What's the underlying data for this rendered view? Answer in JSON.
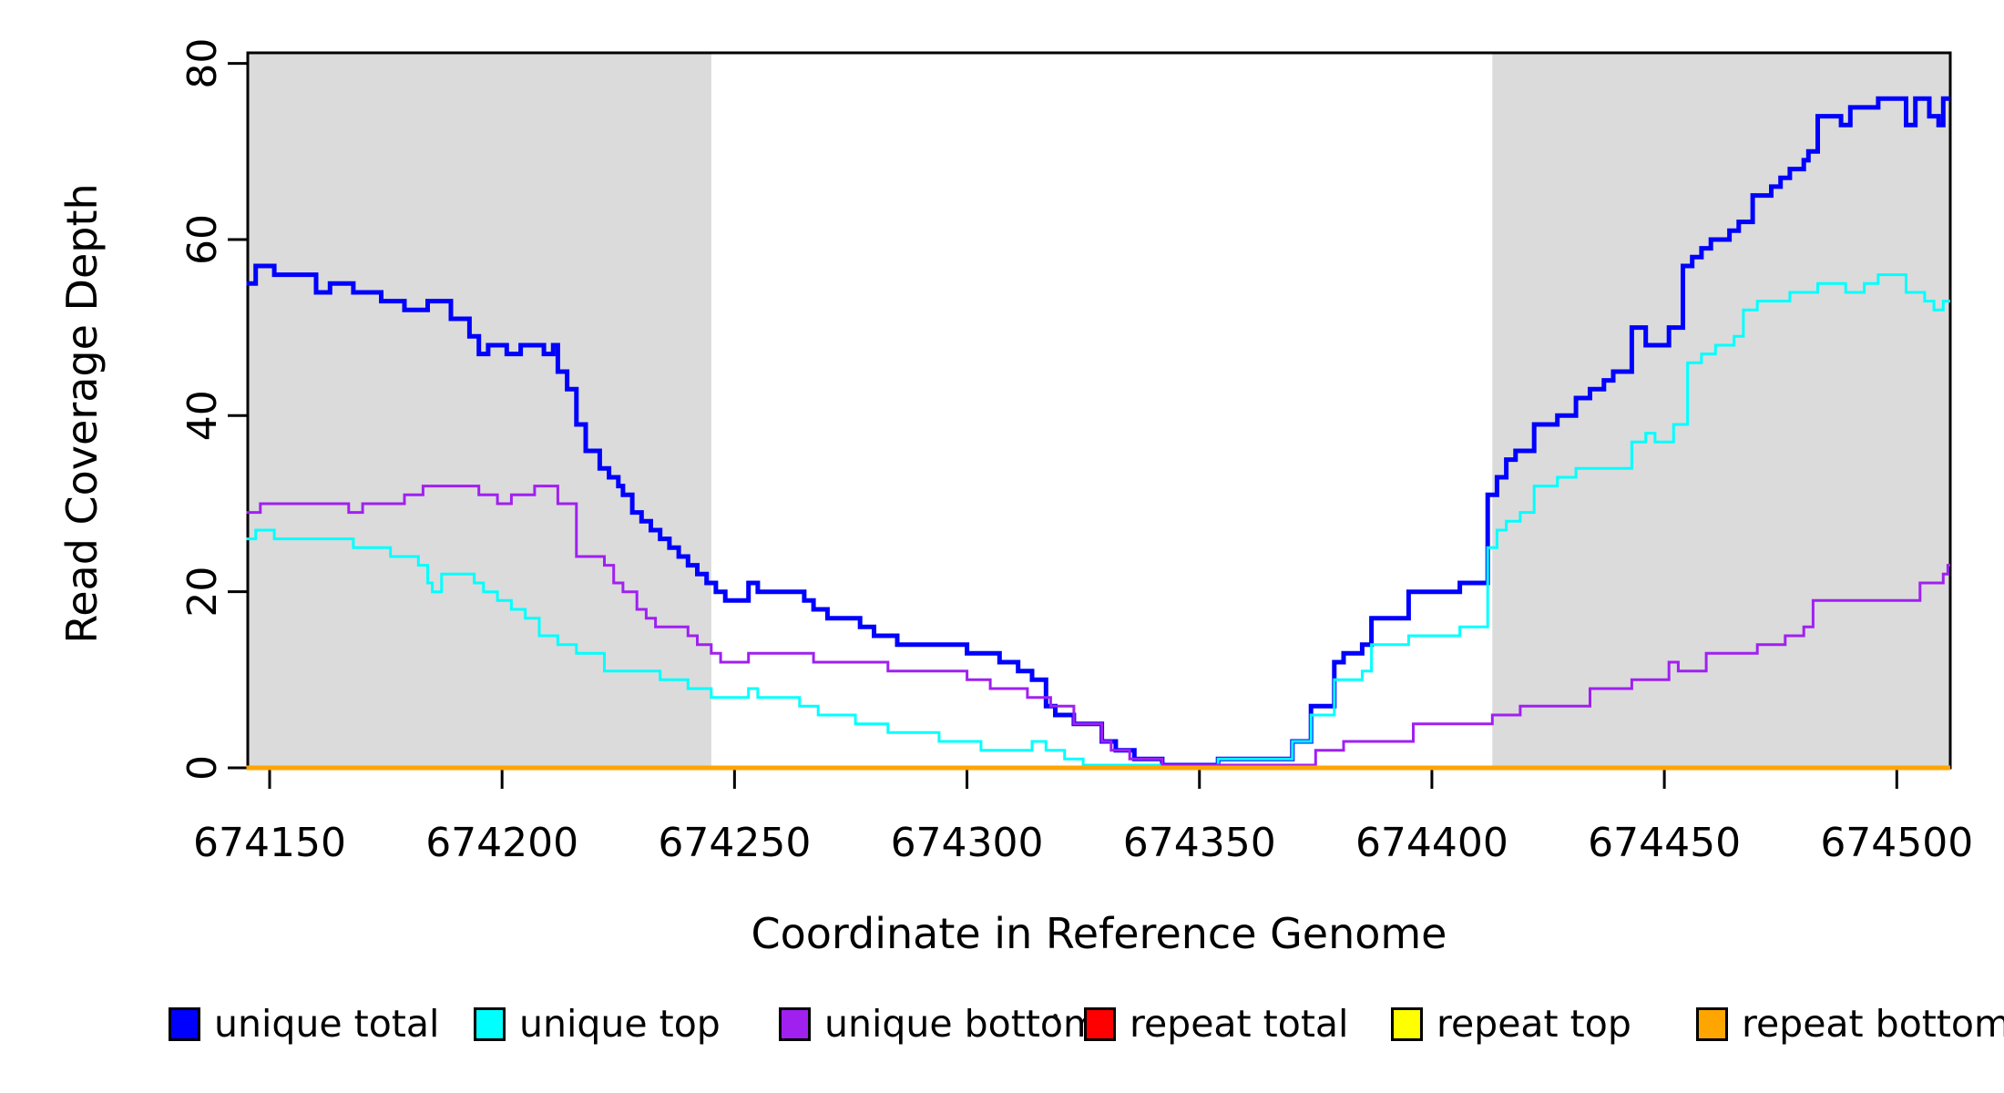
{
  "chart_data": {
    "type": "line",
    "subtype": "step-after",
    "title": "",
    "xlabel": "Coordinate in Reference Genome",
    "ylabel": "Read Coverage Depth",
    "x_range": [
      674145.3,
      674511.5
    ],
    "y_range": [
      0,
      81.2
    ],
    "x_ticks": [
      674150,
      674200,
      674250,
      674300,
      674350,
      674400,
      674450,
      674500
    ],
    "y_ticks": [
      0,
      20,
      40,
      60,
      80
    ],
    "grid": false,
    "legend_position": "bottom",
    "background": "#ffffff",
    "shaded_regions": [
      {
        "x0": 674145.3,
        "x1": 674245,
        "color": "#DBDBDB"
      },
      {
        "x0": 674413,
        "x1": 674511.5,
        "color": "#DBDBDB"
      }
    ],
    "series": [
      {
        "name": "unique total",
        "color": "#0000FF",
        "width": 5,
        "points": [
          [
            674145,
            55
          ],
          [
            674147,
            57
          ],
          [
            674151,
            56
          ],
          [
            674160,
            54
          ],
          [
            674163,
            55
          ],
          [
            674168,
            54
          ],
          [
            674174,
            53
          ],
          [
            674179,
            52
          ],
          [
            674184,
            53
          ],
          [
            674189,
            51
          ],
          [
            674193,
            49
          ],
          [
            674195,
            47
          ],
          [
            674197,
            48
          ],
          [
            674201,
            47
          ],
          [
            674204,
            48
          ],
          [
            674209,
            47
          ],
          [
            674211,
            48
          ],
          [
            674212,
            45
          ],
          [
            674214,
            43
          ],
          [
            674216,
            39
          ],
          [
            674218,
            36
          ],
          [
            674221,
            34
          ],
          [
            674223,
            33
          ],
          [
            674225,
            32
          ],
          [
            674226,
            31
          ],
          [
            674228,
            29
          ],
          [
            674230,
            28
          ],
          [
            674232,
            27
          ],
          [
            674234,
            26
          ],
          [
            674236,
            25
          ],
          [
            674238,
            24
          ],
          [
            674240,
            23
          ],
          [
            674242,
            22
          ],
          [
            674244,
            21
          ],
          [
            674246,
            20
          ],
          [
            674248,
            19
          ],
          [
            674253,
            21
          ],
          [
            674255,
            20
          ],
          [
            674265,
            19
          ],
          [
            674267,
            18
          ],
          [
            674270,
            17
          ],
          [
            674277,
            16
          ],
          [
            674280,
            15
          ],
          [
            674285,
            14
          ],
          [
            674300,
            13
          ],
          [
            674307,
            12
          ],
          [
            674311,
            11
          ],
          [
            674314,
            10
          ],
          [
            674317,
            7
          ],
          [
            674319,
            6
          ],
          [
            674323,
            5
          ],
          [
            674329,
            3
          ],
          [
            674332,
            2
          ],
          [
            674336,
            1
          ],
          [
            674342,
            0
          ],
          [
            674354,
            1
          ],
          [
            674370,
            3
          ],
          [
            674374,
            7
          ],
          [
            674379,
            12
          ],
          [
            674381,
            13
          ],
          [
            674385,
            14
          ],
          [
            674387,
            17
          ],
          [
            674395,
            20
          ],
          [
            674406,
            21
          ],
          [
            674412,
            31
          ],
          [
            674414,
            33
          ],
          [
            674416,
            35
          ],
          [
            674418,
            36
          ],
          [
            674422,
            39
          ],
          [
            674427,
            40
          ],
          [
            674431,
            42
          ],
          [
            674434,
            43
          ],
          [
            674437,
            44
          ],
          [
            674439,
            45
          ],
          [
            674443,
            50
          ],
          [
            674446,
            48
          ],
          [
            674451,
            50
          ],
          [
            674454,
            57
          ],
          [
            674456,
            58
          ],
          [
            674458,
            59
          ],
          [
            674460,
            60
          ],
          [
            674464,
            61
          ],
          [
            674466,
            62
          ],
          [
            674469,
            65
          ],
          [
            674473,
            66
          ],
          [
            674475,
            67
          ],
          [
            674477,
            68
          ],
          [
            674480,
            69
          ],
          [
            674481,
            70
          ],
          [
            674483,
            74
          ],
          [
            674488,
            73
          ],
          [
            674490,
            75
          ],
          [
            674496,
            76
          ],
          [
            674502,
            73
          ],
          [
            674504,
            76
          ],
          [
            674507,
            74
          ],
          [
            674509,
            73
          ],
          [
            674510,
            76
          ]
        ]
      },
      {
        "name": "unique top",
        "color": "#00FFFF",
        "width": 3,
        "points": [
          [
            674145,
            26
          ],
          [
            674147,
            27
          ],
          [
            674151,
            26
          ],
          [
            674168,
            25
          ],
          [
            674176,
            24
          ],
          [
            674182,
            23
          ],
          [
            674184,
            21
          ],
          [
            674185,
            20
          ],
          [
            674187,
            22
          ],
          [
            674194,
            21
          ],
          [
            674196,
            20
          ],
          [
            674199,
            19
          ],
          [
            674202,
            18
          ],
          [
            674205,
            17
          ],
          [
            674208,
            15
          ],
          [
            674212,
            14
          ],
          [
            674216,
            13
          ],
          [
            674222,
            11
          ],
          [
            674234,
            10
          ],
          [
            674240,
            9
          ],
          [
            674245,
            8
          ],
          [
            674253,
            9
          ],
          [
            674255,
            8
          ],
          [
            674264,
            7
          ],
          [
            674268,
            6
          ],
          [
            674276,
            5
          ],
          [
            674283,
            4
          ],
          [
            674294,
            3
          ],
          [
            674303,
            2
          ],
          [
            674314,
            3
          ],
          [
            674317,
            2
          ],
          [
            674321,
            1
          ],
          [
            674325,
            0
          ],
          [
            674354,
            1
          ],
          [
            674370,
            3
          ],
          [
            674374,
            6
          ],
          [
            674379,
            10
          ],
          [
            674385,
            11
          ],
          [
            674387,
            14
          ],
          [
            674395,
            15
          ],
          [
            674406,
            16
          ],
          [
            674412,
            25
          ],
          [
            674414,
            27
          ],
          [
            674416,
            28
          ],
          [
            674419,
            29
          ],
          [
            674422,
            32
          ],
          [
            674427,
            33
          ],
          [
            674431,
            34
          ],
          [
            674443,
            37
          ],
          [
            674446,
            38
          ],
          [
            674448,
            37
          ],
          [
            674452,
            39
          ],
          [
            674455,
            46
          ],
          [
            674458,
            47
          ],
          [
            674461,
            48
          ],
          [
            674465,
            49
          ],
          [
            674467,
            52
          ],
          [
            674470,
            53
          ],
          [
            674477,
            54
          ],
          [
            674483,
            55
          ],
          [
            674489,
            54
          ],
          [
            674493,
            55
          ],
          [
            674496,
            56
          ],
          [
            674502,
            54
          ],
          [
            674506,
            53
          ],
          [
            674508,
            52
          ],
          [
            674510,
            53
          ]
        ]
      },
      {
        "name": "unique bottom",
        "color": "#A020F0",
        "width": 3,
        "points": [
          [
            674145,
            29
          ],
          [
            674148,
            30
          ],
          [
            674167,
            29
          ],
          [
            674170,
            30
          ],
          [
            674179,
            31
          ],
          [
            674183,
            32
          ],
          [
            674195,
            31
          ],
          [
            674199,
            30
          ],
          [
            674202,
            31
          ],
          [
            674207,
            32
          ],
          [
            674212,
            30
          ],
          [
            674216,
            24
          ],
          [
            674222,
            23
          ],
          [
            674224,
            21
          ],
          [
            674226,
            20
          ],
          [
            674229,
            18
          ],
          [
            674231,
            17
          ],
          [
            674233,
            16
          ],
          [
            674240,
            15
          ],
          [
            674242,
            14
          ],
          [
            674245,
            13
          ],
          [
            674247,
            12
          ],
          [
            674253,
            13
          ],
          [
            674267,
            12
          ],
          [
            674283,
            11
          ],
          [
            674300,
            10
          ],
          [
            674305,
            9
          ],
          [
            674313,
            8
          ],
          [
            674318,
            7
          ],
          [
            674323,
            5
          ],
          [
            674329,
            3
          ],
          [
            674331,
            2
          ],
          [
            674335,
            1
          ],
          [
            674342,
            0
          ],
          [
            674375,
            2
          ],
          [
            674381,
            3
          ],
          [
            674396,
            5
          ],
          [
            674413,
            6
          ],
          [
            674419,
            7
          ],
          [
            674434,
            9
          ],
          [
            674443,
            10
          ],
          [
            674451,
            12
          ],
          [
            674453,
            11
          ],
          [
            674459,
            13
          ],
          [
            674470,
            14
          ],
          [
            674476,
            15
          ],
          [
            674480,
            16
          ],
          [
            674482,
            19
          ],
          [
            674505,
            21
          ],
          [
            674510,
            22
          ],
          [
            674511,
            23
          ]
        ]
      },
      {
        "name": "repeat total",
        "color": "#FF0000",
        "width": 3,
        "points": [
          [
            674145,
            0
          ],
          [
            674511,
            0
          ]
        ]
      },
      {
        "name": "repeat top",
        "color": "#FFFF00",
        "width": 3,
        "points": [
          [
            674145,
            0
          ],
          [
            674511,
            0
          ]
        ]
      },
      {
        "name": "repeat bottom",
        "color": "#FFA500",
        "width": 5,
        "points": [
          [
            674145,
            0
          ],
          [
            674511,
            0
          ]
        ]
      }
    ]
  },
  "legend": {
    "items": [
      {
        "label": "unique total",
        "color": "#0000FF"
      },
      {
        "label": "unique top",
        "color": "#00FFFF"
      },
      {
        "label": "unique bottom",
        "color": "#A020F0"
      },
      {
        "label": "repeat total",
        "color": "#FF0000"
      },
      {
        "label": "repeat top",
        "color": "#FFFF00"
      },
      {
        "label": "repeat bottom",
        "color": "#FFA500"
      }
    ]
  }
}
